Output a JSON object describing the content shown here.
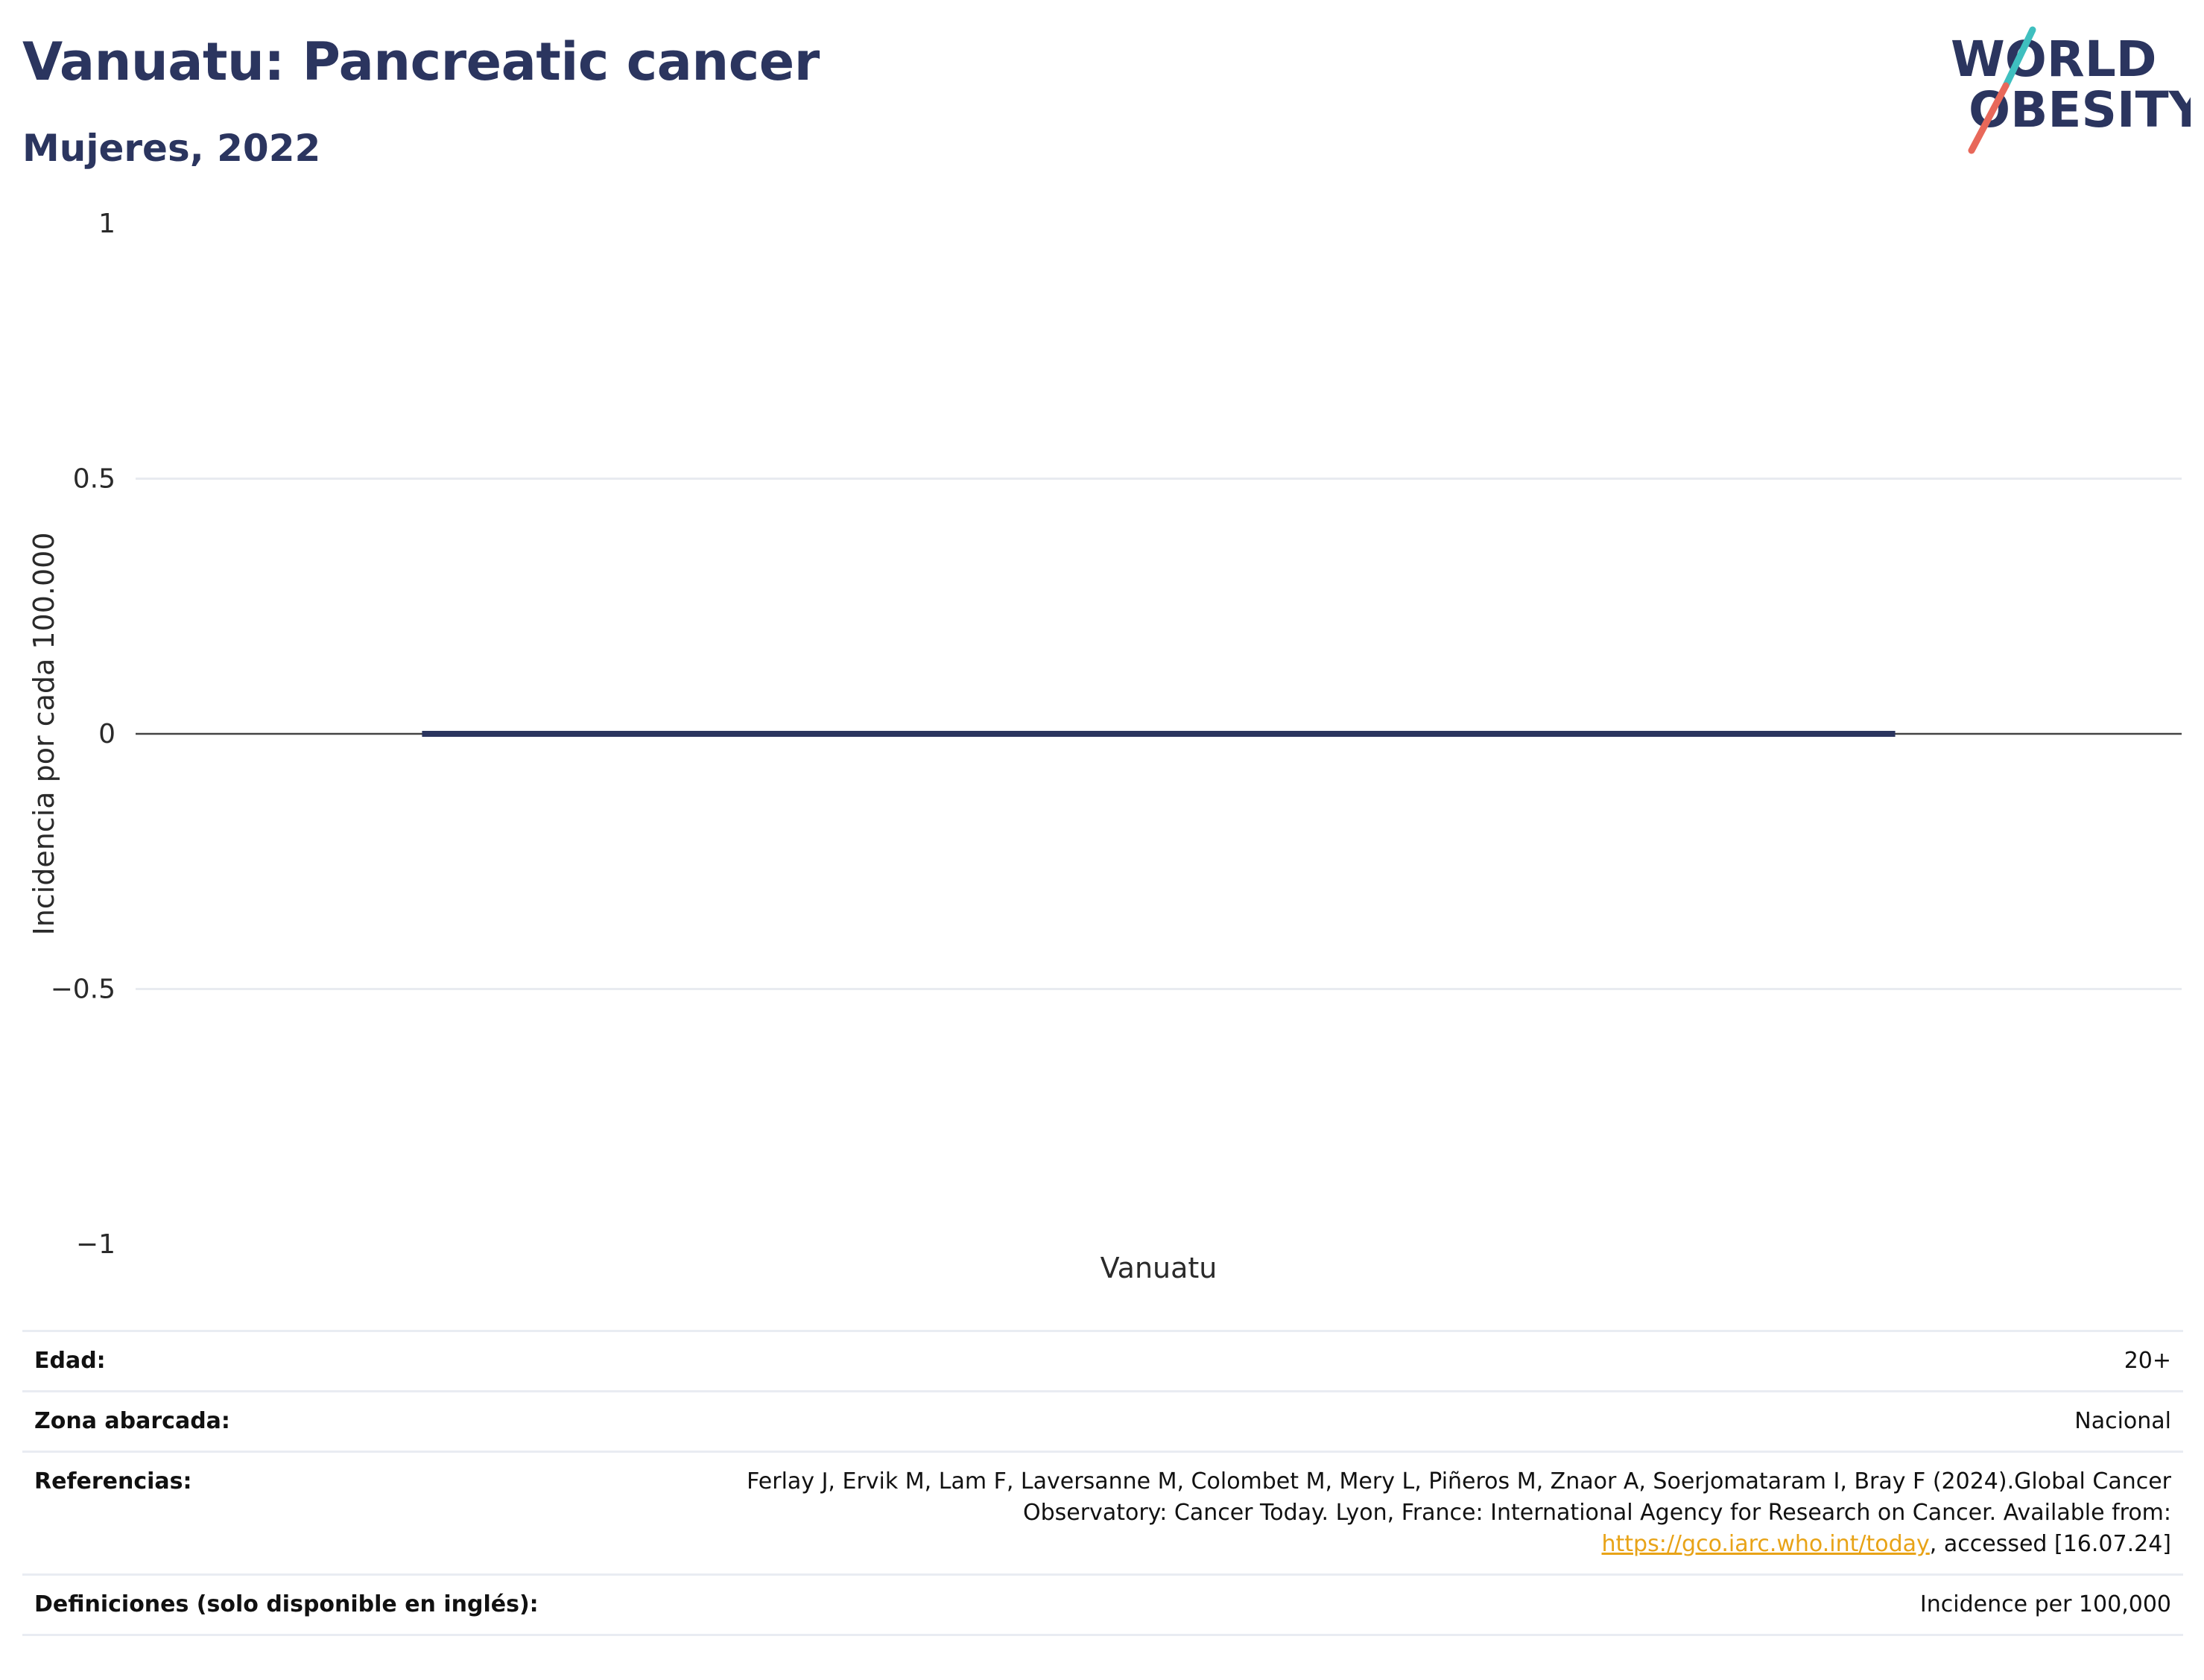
{
  "header": {
    "title": "Vanuatu: Pancreatic cancer",
    "subtitle": "Mujeres, 2022"
  },
  "logo": {
    "line1": "WORLD",
    "line2": "OBESITY",
    "slash_colors": [
      "#3fbfbf",
      "#e8685a"
    ]
  },
  "chart_data": {
    "type": "bar",
    "categories": [
      "Vanuatu"
    ],
    "values": [
      0
    ],
    "xlabel": "",
    "ylabel": "Incidencia por cada 100.000",
    "ylim": [
      -1,
      1
    ],
    "yticks": [
      1,
      0.5,
      0,
      -0.5,
      -1
    ],
    "ytick_labels": [
      "1",
      "0.5",
      "0",
      "−0.5",
      "−1"
    ],
    "grid": true,
    "bar_color": "#2b355f"
  },
  "info": {
    "age": {
      "label": "Edad:",
      "value": "20+"
    },
    "area": {
      "label": "Zona abarcada:",
      "value": "Nacional"
    },
    "references": {
      "label": "Referencias:",
      "text_before": "Ferlay J, Ervik M, Lam F, Laversanne M, Colombet M, Mery L, Piñeros M, Znaor A, Soerjomataram I, Bray F (2024).Global Cancer Observatory: Cancer Today. Lyon, France: International Agency for Research on Cancer. Available from: ",
      "link_text": "https://gco.iarc.who.int/today",
      "text_after": ", accessed [16.07.24]"
    },
    "definitions": {
      "label": "Definiciones (solo disponible en inglés):",
      "value": "Incidence per 100,000"
    }
  }
}
